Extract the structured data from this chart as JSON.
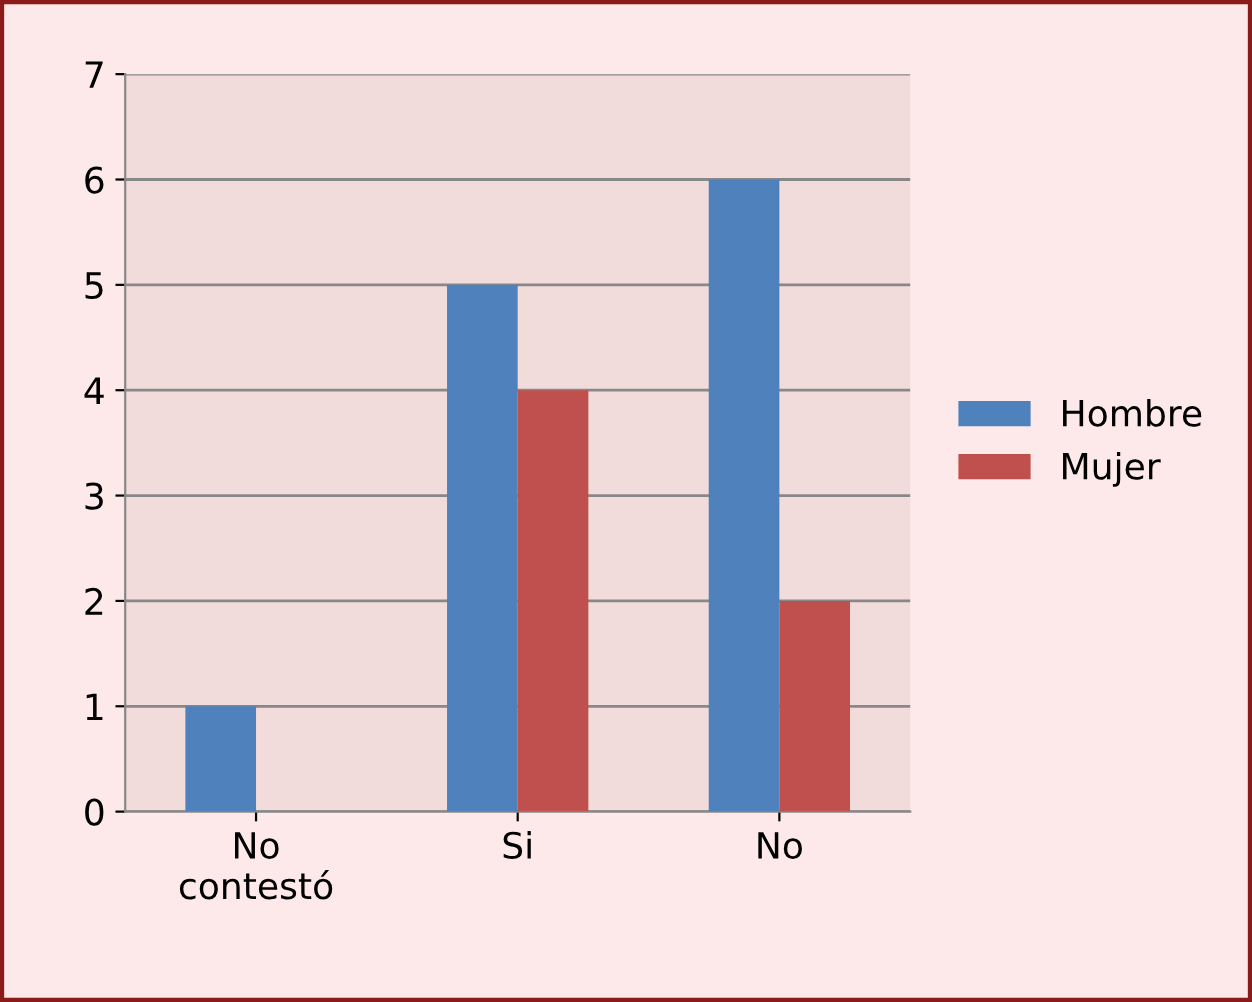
{
  "chart_data": {
    "type": "bar",
    "categories": [
      "No\ncontestó",
      "Si",
      "No"
    ],
    "series": [
      {
        "name": "Hombre",
        "color": "#4f81bd",
        "values": [
          1,
          5,
          6
        ]
      },
      {
        "name": "Mujer",
        "color": "#c0504d",
        "values": [
          0,
          4,
          2
        ]
      }
    ],
    "ylim": [
      0,
      7
    ],
    "yticks": [
      0,
      1,
      2,
      3,
      4,
      5,
      6,
      7
    ],
    "grid": "y",
    "legend": "right"
  }
}
